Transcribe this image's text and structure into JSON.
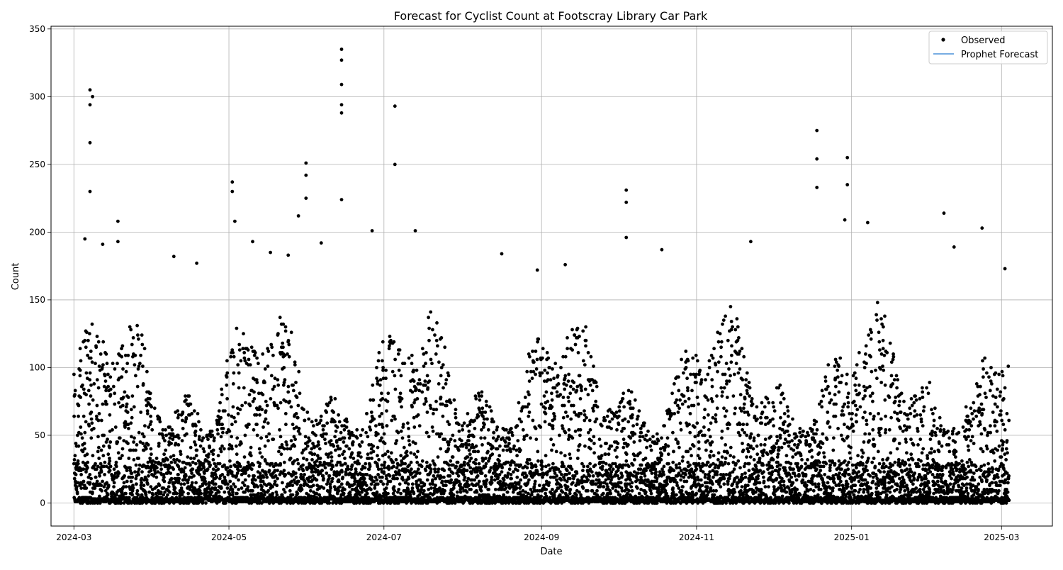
{
  "chart_data": {
    "type": "scatter",
    "title": "Forecast for Cyclist Count at Footscray Library Car Park",
    "xlabel": "Date",
    "ylabel": "Count",
    "x_axis_type": "date",
    "xlim": [
      "2024-02-21",
      "2025-03-21"
    ],
    "ylim": [
      -17,
      352
    ],
    "x_ticks": [
      "2024-03-01",
      "2024-05-01",
      "2024-07-01",
      "2024-09-01",
      "2024-11-01",
      "2025-01-01",
      "2025-03-01"
    ],
    "x_tick_labels": [
      "2024-03",
      "2024-05",
      "2024-07",
      "2024-09",
      "2024-11",
      "2025-01",
      "2025-03"
    ],
    "y_ticks": [
      0,
      50,
      100,
      150,
      200,
      250,
      300,
      350
    ],
    "grid": true,
    "legend_position": "top-right",
    "date_range": [
      "2024-03-01",
      "2025-03-03"
    ],
    "legend": [
      {
        "name": "Observed",
        "marker": "dot",
        "color": "#000000"
      },
      {
        "name": "Prophet Forecast",
        "marker": "line",
        "color": "#4a90d9"
      }
    ],
    "series": [
      {
        "name": "Observed",
        "color": "#000000",
        "peaks": [
          {
            "x": "2024-03-07",
            "y": 305
          },
          {
            "x": "2024-03-07",
            "y": 294
          },
          {
            "x": "2024-03-07",
            "y": 266
          },
          {
            "x": "2024-03-07",
            "y": 230
          },
          {
            "x": "2024-03-08",
            "y": 300
          },
          {
            "x": "2024-03-05",
            "y": 195
          },
          {
            "x": "2024-03-12",
            "y": 191
          },
          {
            "x": "2024-03-18",
            "y": 208
          },
          {
            "x": "2024-03-18",
            "y": 193
          },
          {
            "x": "2024-04-09",
            "y": 182
          },
          {
            "x": "2024-04-18",
            "y": 177
          },
          {
            "x": "2024-05-02",
            "y": 237
          },
          {
            "x": "2024-05-02",
            "y": 230
          },
          {
            "x": "2024-05-03",
            "y": 208
          },
          {
            "x": "2024-05-10",
            "y": 193
          },
          {
            "x": "2024-05-17",
            "y": 185
          },
          {
            "x": "2024-05-24",
            "y": 183
          },
          {
            "x": "2024-05-28",
            "y": 212
          },
          {
            "x": "2024-05-31",
            "y": 251
          },
          {
            "x": "2024-05-31",
            "y": 242
          },
          {
            "x": "2024-05-31",
            "y": 225
          },
          {
            "x": "2024-06-06",
            "y": 192
          },
          {
            "x": "2024-06-14",
            "y": 335
          },
          {
            "x": "2024-06-14",
            "y": 327
          },
          {
            "x": "2024-06-14",
            "y": 309
          },
          {
            "x": "2024-06-14",
            "y": 294
          },
          {
            "x": "2024-06-14",
            "y": 288
          },
          {
            "x": "2024-06-14",
            "y": 224
          },
          {
            "x": "2024-06-26",
            "y": 201
          },
          {
            "x": "2024-07-05",
            "y": 293
          },
          {
            "x": "2024-07-05",
            "y": 250
          },
          {
            "x": "2024-07-13",
            "y": 201
          },
          {
            "x": "2024-08-16",
            "y": 184
          },
          {
            "x": "2024-08-30",
            "y": 172
          },
          {
            "x": "2024-09-10",
            "y": 176
          },
          {
            "x": "2024-10-04",
            "y": 231
          },
          {
            "x": "2024-10-04",
            "y": 222
          },
          {
            "x": "2024-10-04",
            "y": 196
          },
          {
            "x": "2024-10-18",
            "y": 187
          },
          {
            "x": "2024-11-22",
            "y": 193
          },
          {
            "x": "2024-12-18",
            "y": 275
          },
          {
            "x": "2024-12-18",
            "y": 254
          },
          {
            "x": "2024-12-18",
            "y": 233
          },
          {
            "x": "2024-12-30",
            "y": 255
          },
          {
            "x": "2024-12-30",
            "y": 235
          },
          {
            "x": "2024-12-29",
            "y": 209
          },
          {
            "x": "2025-01-07",
            "y": 207
          },
          {
            "x": "2025-02-06",
            "y": 214
          },
          {
            "x": "2025-02-10",
            "y": 189
          },
          {
            "x": "2025-02-21",
            "y": 203
          },
          {
            "x": "2025-03-02",
            "y": 173
          }
        ]
      },
      {
        "name": "Prophet Forecast",
        "color": "#4a90d9",
        "points": []
      }
    ]
  }
}
